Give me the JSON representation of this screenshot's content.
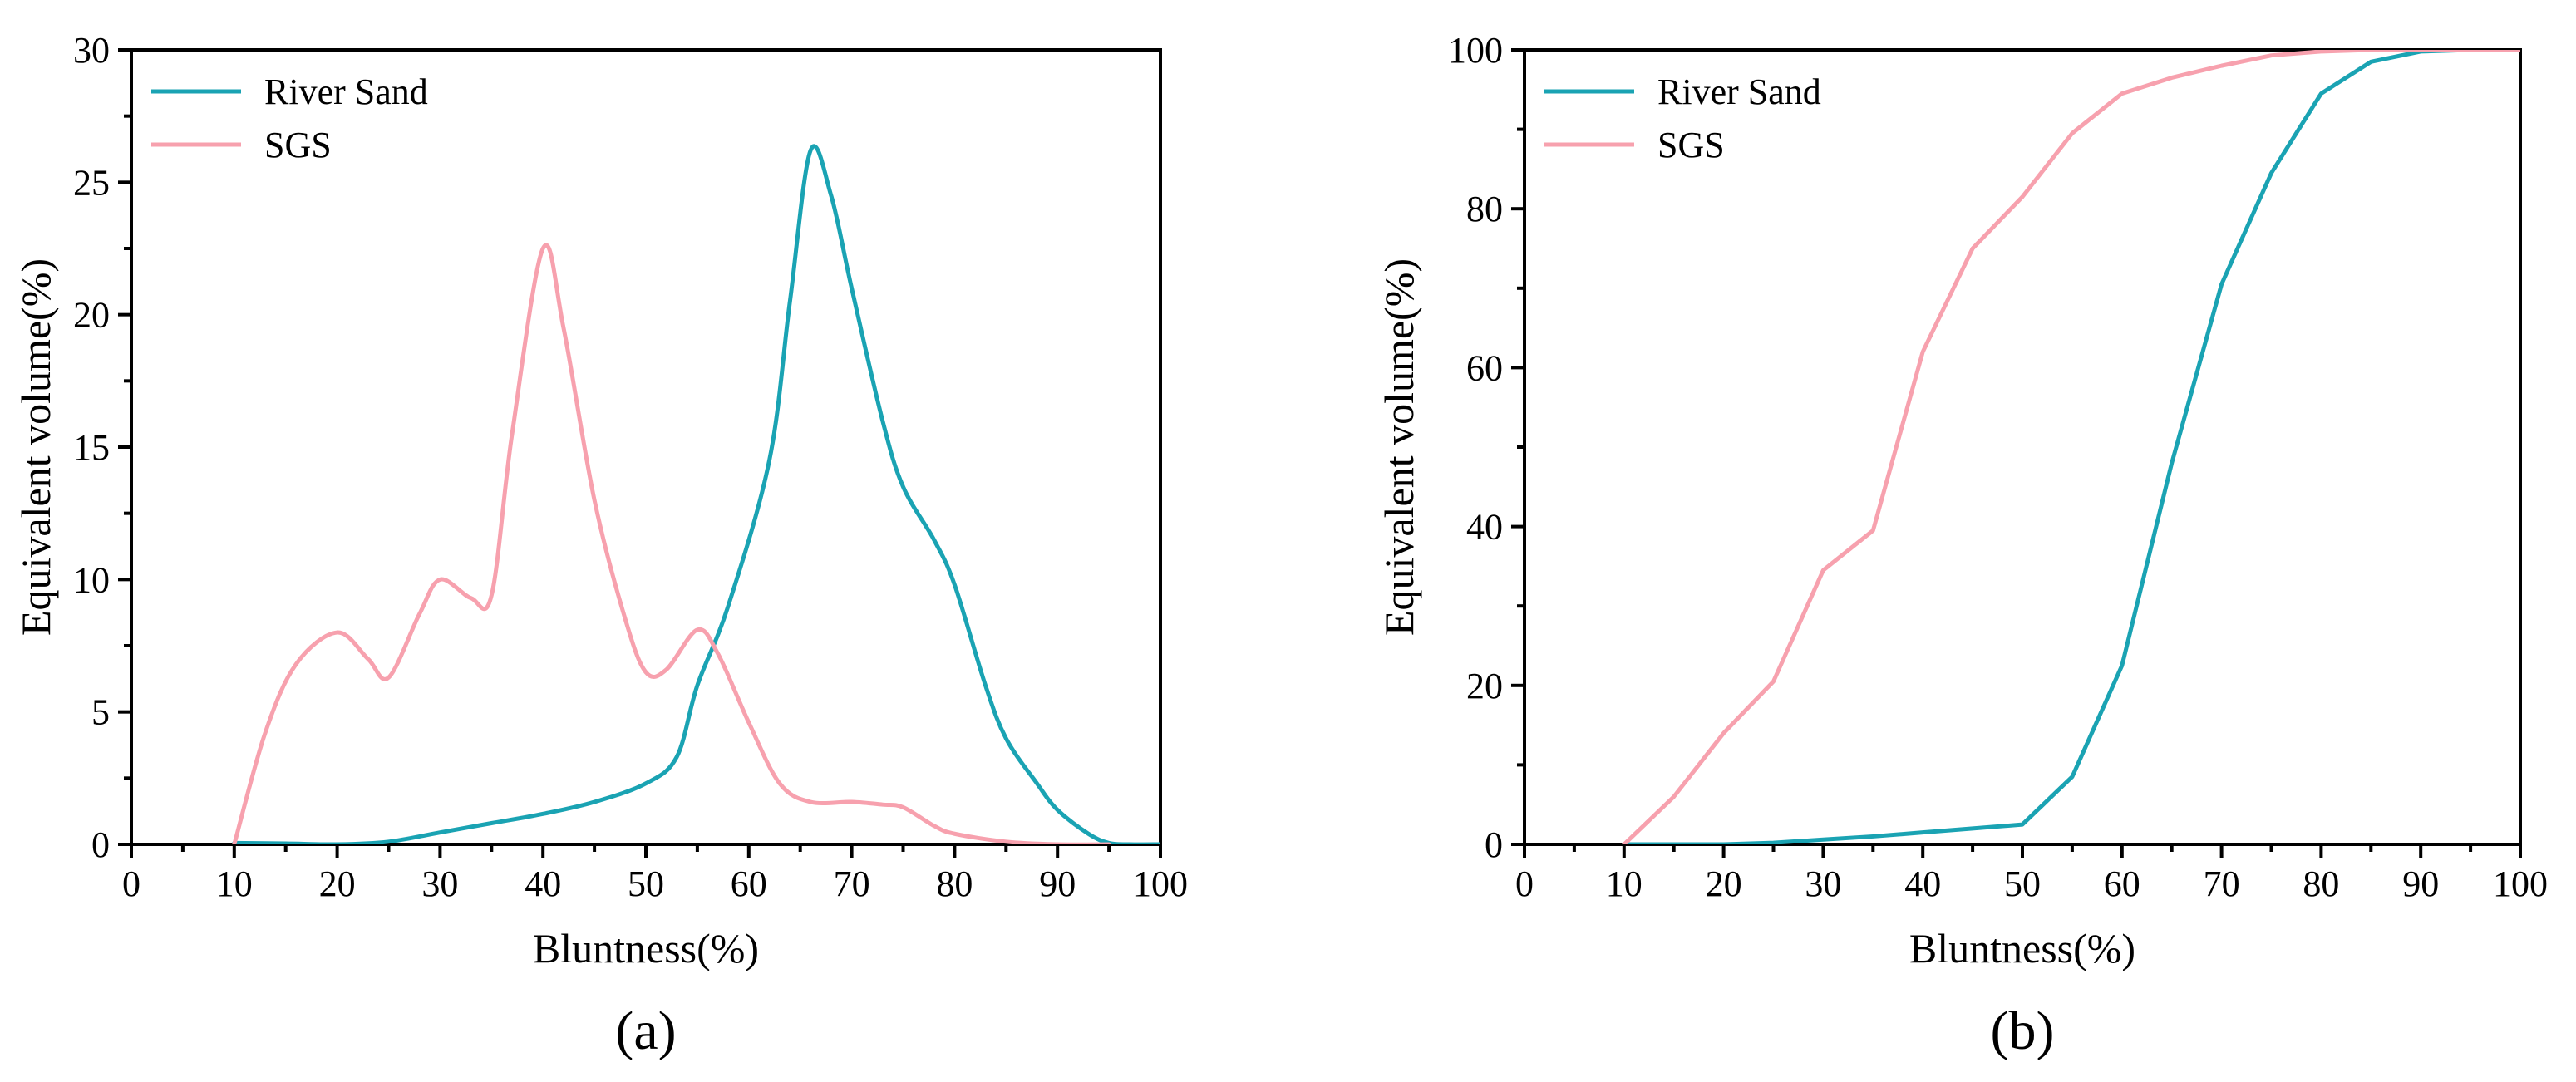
{
  "colors": {
    "river_sand": "#1aa3b3",
    "sgs": "#f7a1ae"
  },
  "chart_data": [
    {
      "type": "line",
      "panel_label": "(a)",
      "title": "",
      "xlabel": "Bluntness(%)",
      "ylabel": "Equivalent volume(%)",
      "xlim": [
        0,
        100
      ],
      "ylim": [
        0,
        30
      ],
      "xticks": [
        0,
        10,
        20,
        30,
        40,
        50,
        60,
        70,
        80,
        90,
        100
      ],
      "yticks": [
        0,
        5,
        10,
        15,
        20,
        25,
        30
      ],
      "legend_position": "top-left",
      "series": [
        {
          "name": "River Sand",
          "color": "#1aa3b3",
          "x": [
            10,
            15,
            20,
            25,
            30,
            35,
            40,
            45,
            50,
            53,
            55,
            58,
            62,
            64,
            66,
            68,
            70,
            73,
            75,
            78,
            80,
            83,
            85,
            88,
            90,
            93,
            95,
            97,
            100
          ],
          "y": [
            0.05,
            0.03,
            0.0,
            0.1,
            0.45,
            0.8,
            1.15,
            1.6,
            2.3,
            3.3,
            6.0,
            9.0,
            14.5,
            20.5,
            26.2,
            24.5,
            21.0,
            16.0,
            13.5,
            11.5,
            9.8,
            6.0,
            4.0,
            2.3,
            1.3,
            0.4,
            0.05,
            0.0,
            0.0
          ]
        },
        {
          "name": "SGS",
          "color": "#f7a1ae",
          "x": [
            10,
            13,
            16,
            20,
            23,
            25,
            28,
            30,
            33,
            35,
            37,
            40,
            42,
            45,
            48,
            50,
            52,
            55,
            57,
            60,
            63,
            66,
            70,
            73,
            75,
            78,
            80,
            85,
            90,
            95
          ],
          "y": [
            0.0,
            4.2,
            6.8,
            8.0,
            7.0,
            6.3,
            8.7,
            10.0,
            9.3,
            9.4,
            15.5,
            22.5,
            19.5,
            13.0,
            8.5,
            6.5,
            6.6,
            8.1,
            7.2,
            4.6,
            2.3,
            1.6,
            1.6,
            1.5,
            1.4,
            0.7,
            0.4,
            0.1,
            0.0,
            0.0
          ]
        }
      ]
    },
    {
      "type": "line",
      "panel_label": "(b)",
      "title": "",
      "xlabel": "Bluntness(%)",
      "ylabel": "Equivalent volume(%)",
      "xlim": [
        0,
        100
      ],
      "ylim": [
        0,
        100
      ],
      "xticks": [
        0,
        10,
        20,
        30,
        40,
        50,
        60,
        70,
        80,
        90,
        100
      ],
      "yticks": [
        0,
        20,
        40,
        60,
        80,
        100
      ],
      "legend_position": "top-left",
      "series": [
        {
          "name": "River Sand",
          "color": "#1aa3b3",
          "x": [
            10,
            20,
            25,
            30,
            35,
            40,
            45,
            50,
            55,
            60,
            65,
            70,
            75,
            80,
            85,
            90,
            95,
            100
          ],
          "y": [
            0.0,
            0.0,
            0.2,
            0.6,
            1.0,
            1.5,
            2.0,
            2.5,
            8.5,
            22.5,
            48.0,
            70.5,
            84.5,
            94.5,
            98.5,
            99.8,
            100,
            100
          ]
        },
        {
          "name": "SGS",
          "color": "#f7a1ae",
          "x": [
            10,
            15,
            20,
            25,
            30,
            35,
            40,
            45,
            50,
            55,
            60,
            65,
            70,
            75,
            80,
            85,
            90,
            95,
            100
          ],
          "y": [
            0.0,
            6.0,
            14.0,
            20.5,
            34.5,
            39.5,
            62.0,
            75.0,
            81.5,
            89.5,
            94.5,
            96.5,
            98.0,
            99.3,
            99.8,
            100,
            100,
            100,
            100
          ]
        }
      ]
    }
  ]
}
